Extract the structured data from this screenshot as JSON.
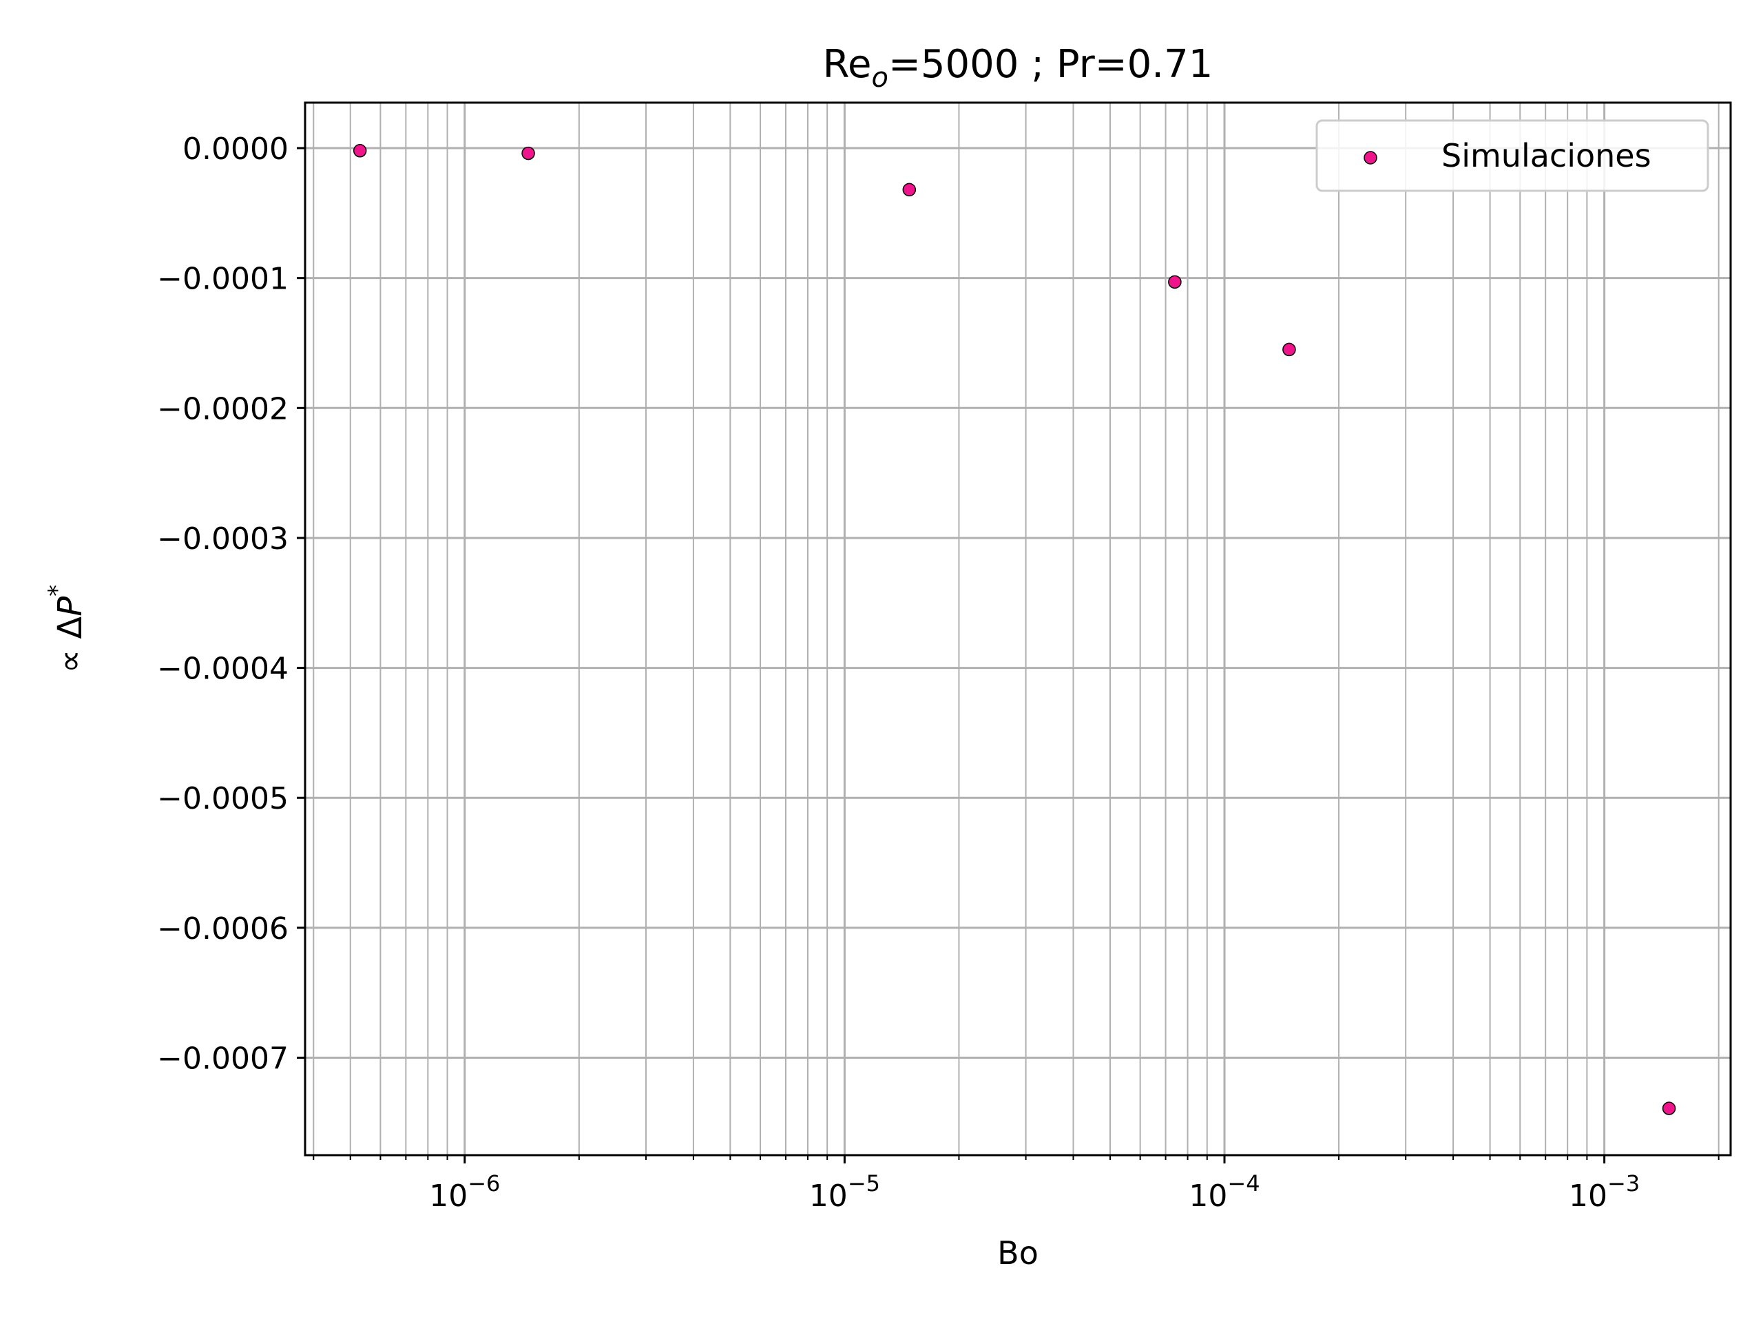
{
  "chart_data": {
    "type": "scatter",
    "title": {
      "main": "Re",
      "sub": "o",
      "rest": "=5000 ; Pr=0.71"
    },
    "xlabel": "Bo",
    "ylabel": {
      "prefix": "∝ Δ",
      "var": "P",
      "sup": "*"
    },
    "xscale": "log",
    "xlim": [
      3.8e-07,
      0.00215
    ],
    "ylim": [
      -0.000775,
      3.5e-05
    ],
    "xticks": [
      {
        "value": 1e-06,
        "base": "10",
        "exp": "−6"
      },
      {
        "value": 1e-05,
        "base": "10",
        "exp": "−5"
      },
      {
        "value": 0.0001,
        "base": "10",
        "exp": "−4"
      },
      {
        "value": 0.001,
        "base": "10",
        "exp": "−3"
      }
    ],
    "yticks": [
      {
        "value": 0.0,
        "label": "0.0000"
      },
      {
        "value": -0.0001,
        "label": "−0.0001"
      },
      {
        "value": -0.0002,
        "label": "−0.0002"
      },
      {
        "value": -0.0003,
        "label": "−0.0003"
      },
      {
        "value": -0.0004,
        "label": "−0.0004"
      },
      {
        "value": -0.0005,
        "label": "−0.0005"
      },
      {
        "value": -0.0006,
        "label": "−0.0006"
      },
      {
        "value": -0.0007,
        "label": "−0.0007"
      }
    ],
    "grid": true,
    "grid_minor": true,
    "legend_position": "top-right",
    "series": [
      {
        "name": "Simulaciones",
        "color": "#f0148c",
        "edge_color": "#000000",
        "points": [
          {
            "x": 5.3e-07,
            "y": -2e-06
          },
          {
            "x": 1.47e-06,
            "y": -4e-06
          },
          {
            "x": 1.48e-05,
            "y": -3.2e-05
          },
          {
            "x": 7.4e-05,
            "y": -0.000103
          },
          {
            "x": 0.000148,
            "y": -0.000155
          },
          {
            "x": 0.00148,
            "y": -0.000739
          }
        ]
      }
    ]
  }
}
